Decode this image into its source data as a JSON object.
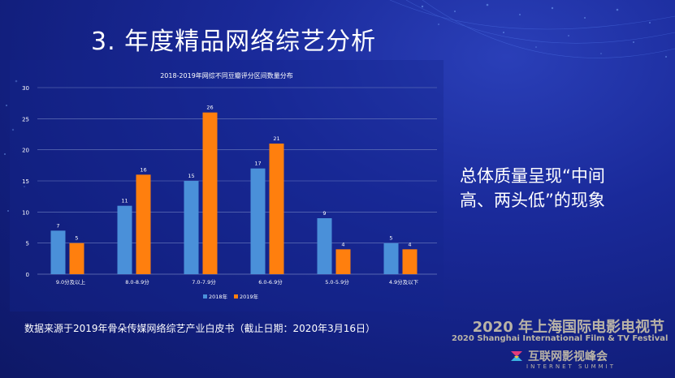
{
  "slide_title": "3. 年度精品网络综艺分析",
  "side_text": "总体质量呈现“中间\n高、两头低”的现象",
  "source_note": "数据来源于2019年骨朵传媒网络综艺产业白皮书（截止日期：2020年3月16日）",
  "event_name_zh": "2020 年上海国际电影电视节",
  "event_name_en": "2020 Shanghai International Film & TV Festival",
  "summit_name_zh": "互联网影视峰会",
  "summit_name_en": "INTERNET SUMMIT",
  "chart_data": {
    "type": "bar",
    "title": "2018-2019年网综不同豆瓣评分区间数量分布",
    "categories": [
      "9.0分及以上",
      "8.0-8.9分",
      "7.0-7.9分",
      "6.0-6.9分",
      "5.0-5.9分",
      "4.9分及以下"
    ],
    "series": [
      {
        "name": "2018年",
        "color": "#4a90d9",
        "values": [
          7,
          11,
          15,
          17,
          9,
          5
        ]
      },
      {
        "name": "2019年",
        "color": "#ff7f0e",
        "values": [
          5,
          16,
          26,
          21,
          4,
          4
        ]
      }
    ],
    "yticks": [
      0,
      5,
      10,
      15,
      20,
      25,
      30
    ],
    "ylim": [
      0,
      30
    ],
    "grid": true,
    "legend": "bottom-center"
  }
}
